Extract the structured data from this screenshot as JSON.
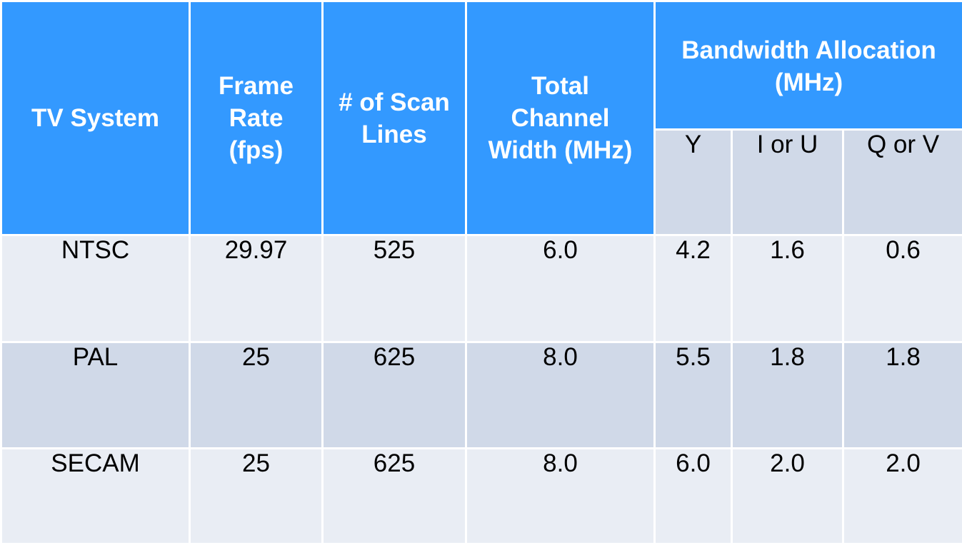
{
  "table": {
    "headers": {
      "tv_system": [
        "TV System"
      ],
      "frame_rate": [
        "Frame",
        "Rate",
        "(fps)"
      ],
      "scan_lines": [
        "# of Scan",
        "Lines"
      ],
      "channel_width": [
        "Total",
        "Channel",
        "Width (MHz)"
      ],
      "bandwidth_group": [
        "Bandwidth Allocation",
        "(MHz)"
      ],
      "sub": [
        "Y",
        "I or U",
        "Q or V"
      ]
    },
    "rows": [
      [
        "NTSC",
        "29.97",
        "525",
        "6.0",
        "4.2",
        "1.6",
        "0.6"
      ],
      [
        "PAL",
        "25",
        "625",
        "8.0",
        "5.5",
        "1.8",
        "1.8"
      ],
      [
        "SECAM",
        "25",
        "625",
        "8.0",
        "6.0",
        "2.0",
        "2.0"
      ]
    ]
  },
  "colors": {
    "header_bg": "#3399ff",
    "row_light": "#e9edf4",
    "row_dark": "#d0d9e8"
  }
}
